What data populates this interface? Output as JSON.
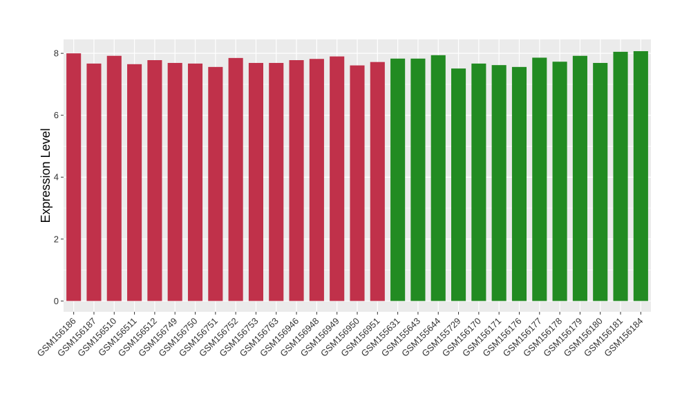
{
  "chart_data": {
    "type": "bar",
    "title": "",
    "xlabel": "",
    "ylabel": "Expression Level",
    "ylim": [
      -0.35,
      8.45
    ],
    "yticks": [
      0,
      2,
      4,
      6,
      8
    ],
    "grid": true,
    "legend": "none",
    "colors": {
      "panel": "#ebebeb",
      "grid": "#ffffff",
      "group_a": "#c0314a",
      "group_b": "#228b22"
    },
    "categories": [
      "GSM156186",
      "GSM156187",
      "GSM156510",
      "GSM156511",
      "GSM156512",
      "GSM156749",
      "GSM156750",
      "GSM156751",
      "GSM156752",
      "GSM156753",
      "GSM156763",
      "GSM156946",
      "GSM156948",
      "GSM156949",
      "GSM156950",
      "GSM156951",
      "GSM155631",
      "GSM155643",
      "GSM155644",
      "GSM155729",
      "GSM156170",
      "GSM156171",
      "GSM156176",
      "GSM156177",
      "GSM156178",
      "GSM156179",
      "GSM156180",
      "GSM156181",
      "GSM156184"
    ],
    "values": [
      8.0,
      7.67,
      7.92,
      7.65,
      7.78,
      7.69,
      7.67,
      7.56,
      7.85,
      7.69,
      7.69,
      7.78,
      7.82,
      7.9,
      7.61,
      7.72,
      7.83,
      7.83,
      7.94,
      7.51,
      7.67,
      7.62,
      7.56,
      7.86,
      7.73,
      7.92,
      7.69,
      8.05,
      8.07
    ],
    "groups": [
      "a",
      "a",
      "a",
      "a",
      "a",
      "a",
      "a",
      "a",
      "a",
      "a",
      "a",
      "a",
      "a",
      "a",
      "a",
      "a",
      "b",
      "b",
      "b",
      "b",
      "b",
      "b",
      "b",
      "b",
      "b",
      "b",
      "b",
      "b",
      "b"
    ]
  }
}
